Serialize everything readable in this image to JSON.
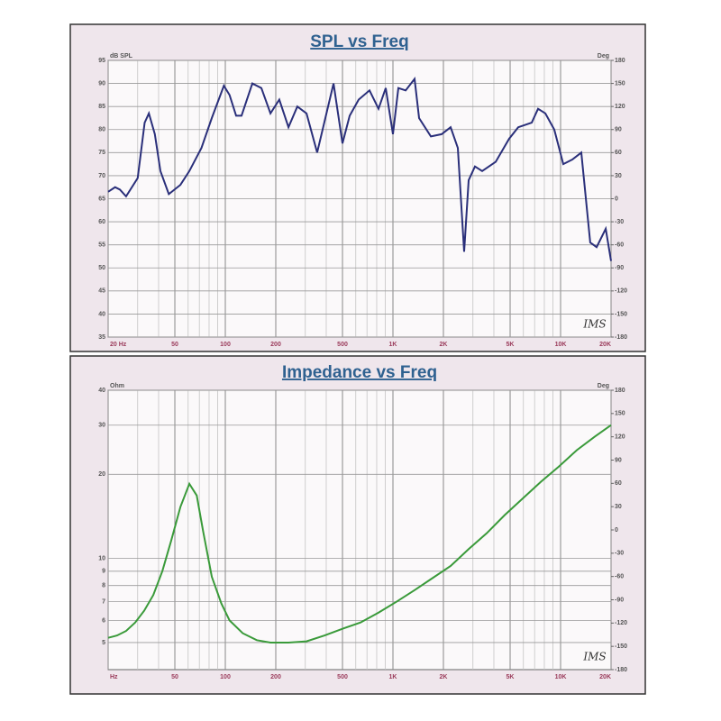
{
  "chart_data": [
    {
      "type": "line",
      "title": "SPL vs Freq",
      "y_label": "dB SPL",
      "y2_label": "Deg",
      "annotation": "IMS",
      "x_scale": "log",
      "grid": true,
      "xlim": [
        20,
        20000
      ],
      "xticks": [
        {
          "value": 20,
          "label": "20 Hz"
        },
        50,
        100,
        200,
        500,
        {
          "value": 1000,
          "label": "1K"
        },
        {
          "value": 2000,
          "label": "2K"
        },
        {
          "value": 5000,
          "label": "5K"
        },
        {
          "value": 10000,
          "label": "10K"
        },
        {
          "value": 20000,
          "label": "20K"
        }
      ],
      "ylim": [
        35,
        95
      ],
      "yticks": [
        35,
        40,
        45,
        50,
        55,
        60,
        65,
        70,
        75,
        80,
        85,
        90,
        95
      ],
      "y2lim": [
        -180,
        180
      ],
      "y2ticks": [
        -180,
        -150,
        -120,
        -90,
        -60,
        -30,
        0,
        30,
        60,
        90,
        120,
        150,
        180
      ],
      "x": [
        20,
        22,
        23.5,
        25.6,
        30,
        33,
        35,
        38,
        41,
        46,
        54,
        61,
        72,
        83,
        98,
        106,
        116,
        125,
        145,
        164,
        186,
        210,
        238,
        269,
        305,
        353,
        442,
        500,
        552,
        625,
        725,
        820,
        906,
        1000,
        1077,
        1190,
        1346,
        1432,
        1683,
        1950,
        2208,
        2439,
        2660,
        2830,
        3084,
        3405,
        4100,
        4933,
        5587,
        6730,
        7340,
        8110,
        9170,
        10380,
        11750,
        13300,
        15030,
        16400,
        18580,
        20000
      ],
      "series": [
        {
          "name": "SPL",
          "color": "#2a2f7a",
          "values": [
            66.5,
            67.5,
            67,
            65.5,
            69.5,
            81.5,
            83.5,
            79,
            71,
            66,
            68,
            71,
            76,
            82.5,
            89.5,
            87.5,
            83,
            83,
            90,
            89,
            83.5,
            86.5,
            80.5,
            85,
            83.5,
            75,
            90,
            77,
            83,
            86.5,
            88.5,
            84.5,
            89,
            79,
            89,
            88.5,
            91,
            82.5,
            78.5,
            79,
            80.5,
            76,
            53.5,
            69,
            72,
            71,
            73,
            78,
            80.5,
            81.5,
            84.5,
            83.5,
            80,
            72.5,
            73.5,
            75,
            55.5,
            54.5,
            58.5,
            51.5
          ]
        }
      ]
    },
    {
      "type": "line",
      "title": "Impedance vs Freq",
      "y_label": "Ohm",
      "y2_label": "Deg",
      "annotation": "IMS",
      "x_scale": "log",
      "y_scale": "log",
      "grid": true,
      "xlim": [
        20,
        20000
      ],
      "xticks": [
        {
          "value": 20,
          "label": "Hz"
        },
        50,
        100,
        200,
        500,
        {
          "value": 1000,
          "label": "1K"
        },
        {
          "value": 2000,
          "label": "2K"
        },
        {
          "value": 5000,
          "label": "5K"
        },
        {
          "value": 10000,
          "label": "10K"
        },
        {
          "value": 20000,
          "label": "20K"
        }
      ],
      "ylim": [
        4,
        40
      ],
      "yticks": [
        5,
        6,
        7,
        8,
        9,
        10,
        20,
        30,
        40
      ],
      "y2lim": [
        -180,
        180
      ],
      "y2ticks": [
        -180,
        -150,
        -120,
        -90,
        -60,
        -30,
        0,
        30,
        60,
        90,
        120,
        150,
        180
      ],
      "x": [
        20,
        22.6,
        25.6,
        29,
        32.8,
        37.2,
        42.1,
        47.6,
        54,
        61,
        67.5,
        73.7,
        83,
        94.7,
        106,
        127,
        154,
        186,
        238,
        305,
        391,
        500,
        640,
        820,
        1050,
        1346,
        1720,
        2208,
        2830,
        3620,
        4640,
        5950,
        7620,
        9760,
        12500,
        16000,
        20000
      ],
      "series": [
        {
          "name": "Impedance",
          "color": "#3a9a3a",
          "values": [
            5.2,
            5.3,
            5.5,
            5.9,
            6.5,
            7.4,
            9.0,
            11.6,
            15.3,
            18.5,
            16.8,
            12.5,
            8.6,
            6.9,
            6.0,
            5.4,
            5.1,
            5.0,
            5.0,
            5.05,
            5.3,
            5.6,
            5.9,
            6.4,
            7.0,
            7.7,
            8.5,
            9.4,
            10.8,
            12.3,
            14.3,
            16.4,
            18.8,
            21.3,
            24.4,
            27.3,
            30
          ]
        }
      ]
    }
  ]
}
